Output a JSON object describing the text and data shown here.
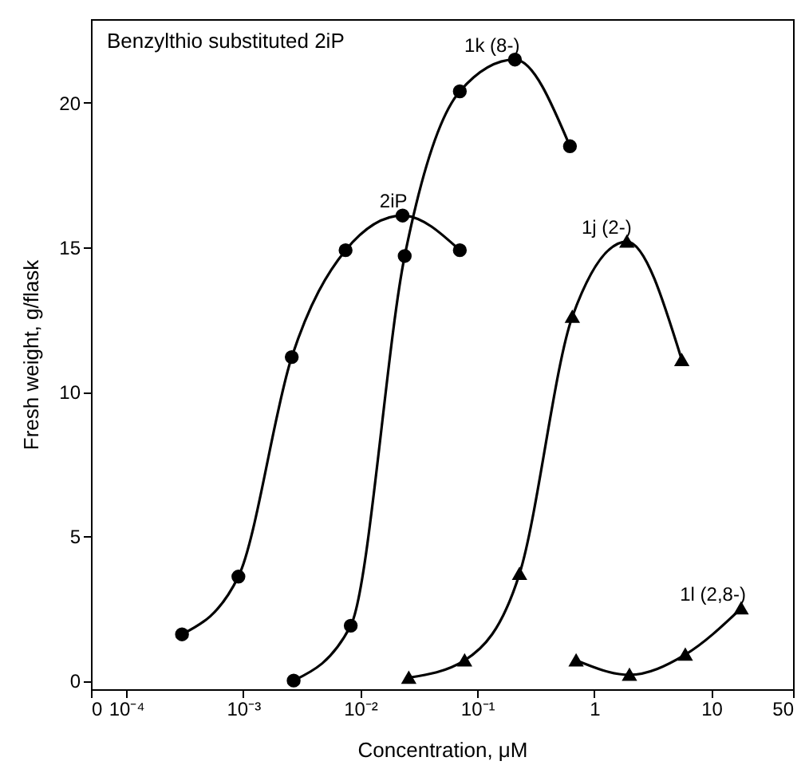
{
  "chart_data": {
    "type": "line",
    "annotations": [
      "Benzylthio substituted 2iP"
    ],
    "xlabel": "Concentration, μM",
    "ylabel": "Fresh weight, g/flask",
    "log": "x",
    "xlim": [
      5e-05,
      50
    ],
    "xticks": [
      {
        "value": 5e-05,
        "label": "0"
      },
      {
        "value": 0.0001,
        "label": "10⁻⁴"
      },
      {
        "value": 0.001,
        "label": "10⁻³"
      },
      {
        "value": 0.01,
        "label": "10⁻²"
      },
      {
        "value": 0.1,
        "label": "10⁻¹"
      },
      1,
      10,
      50
    ],
    "ylim": [
      -0.3,
      22.9
    ],
    "yticks": [
      0,
      5,
      10,
      15,
      20
    ],
    "grid": false,
    "line_style": "solid",
    "series": [
      {
        "name": "2iP",
        "color": "#000000",
        "marker": "circle",
        "x": [
          0.0003,
          0.00091,
          0.0026,
          0.0075,
          0.023,
          0.071
        ],
        "values": [
          1.6,
          3.6,
          11.2,
          14.9,
          16.1,
          14.9
        ]
      },
      {
        "name": "1k (8-)",
        "color": "#000000",
        "marker": "circle",
        "x": [
          0.0027,
          0.0083,
          0.024,
          0.071,
          0.21,
          0.62
        ],
        "values": [
          0,
          1.9,
          14.7,
          20.4,
          21.5,
          18.5
        ]
      },
      {
        "name": "1j (2-)",
        "color": "#000000",
        "marker": "triangle",
        "x": [
          0.026,
          0.078,
          0.23,
          0.65,
          1.9,
          5.6
        ],
        "values": [
          0.1,
          0.7,
          3.7,
          12.6,
          15.2,
          11.1
        ]
      },
      {
        "name": "1l (2,8-)",
        "color": "#000000",
        "marker": "triangle",
        "x": [
          0.7,
          2.0,
          6.0,
          18
        ],
        "values": [
          0.7,
          0.2,
          0.9,
          2.5
        ]
      }
    ]
  }
}
